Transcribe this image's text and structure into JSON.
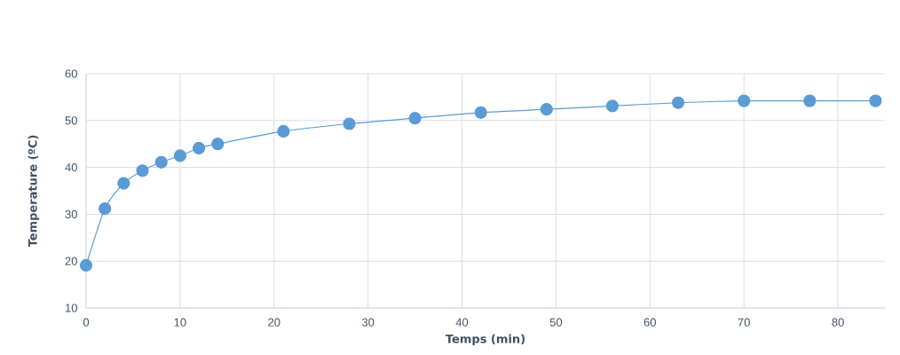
{
  "chart_data": {
    "type": "line",
    "xlabel": "Temps (min)",
    "ylabel": "Temperature (ºC)",
    "x": [
      0,
      2,
      4,
      6,
      8,
      10,
      12,
      14,
      21,
      28,
      35,
      42,
      49,
      56,
      63,
      70,
      77,
      84
    ],
    "series": [
      {
        "color": "#5b9bd5",
        "values": [
          19.1,
          31.2,
          36.6,
          39.3,
          41.1,
          42.5,
          44.1,
          45.0,
          47.7,
          49.3,
          50.5,
          51.7,
          52.4,
          53.1,
          53.8,
          54.2,
          54.2,
          54.2
        ]
      }
    ],
    "xlim": [
      0,
      85
    ],
    "xticks": [
      0,
      10,
      20,
      30,
      40,
      50,
      60,
      70,
      80
    ],
    "ylim": [
      10,
      60
    ],
    "yticks": [
      10,
      20,
      30,
      40,
      50,
      60
    ],
    "grid": true,
    "marker": "circle",
    "line_style": "solid"
  }
}
